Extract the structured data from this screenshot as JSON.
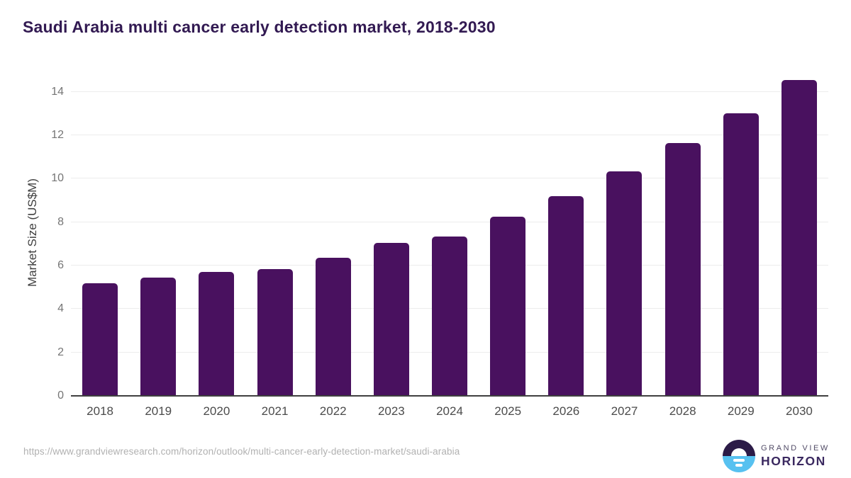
{
  "header": {
    "title": "Saudi Arabia multi cancer early detection market, 2018-2030"
  },
  "chart_data": {
    "type": "bar",
    "title": "Saudi Arabia multi cancer early detection market, 2018-2030",
    "categories": [
      "2018",
      "2019",
      "2020",
      "2021",
      "2022",
      "2023",
      "2024",
      "2025",
      "2026",
      "2027",
      "2028",
      "2029",
      "2030"
    ],
    "values": [
      5.2,
      5.45,
      5.7,
      5.85,
      6.35,
      7.05,
      7.35,
      8.25,
      9.2,
      10.35,
      11.65,
      13.0,
      14.55
    ],
    "series_name": "Market Size",
    "xlabel": "",
    "ylabel": "Market Size (US$M)",
    "ylim": [
      0,
      15
    ],
    "yticks": [
      0,
      2,
      4,
      6,
      8,
      10,
      12,
      14
    ],
    "grid": true,
    "legend": false,
    "bar_color": "#49115f"
  },
  "footer": {
    "source_url": "https://www.grandviewresearch.com/horizon/outlook/multi-cancer-early-detection-market/saudi-arabia",
    "logo": {
      "brand_line1": "GRAND VIEW",
      "brand_line2": "HORIZON"
    }
  },
  "colors": {
    "bar": "#49115f",
    "title_text": "#321a52",
    "gridline": "#ececec",
    "axis_line": "#3f3f3f",
    "y_tick_text": "#757575",
    "x_tick_text": "#4b4b4b",
    "url_text": "#b1b1b1",
    "logo_dark": "#2c1b47",
    "logo_blue": "#57c1f0",
    "logo_brand_text": "#3b2960"
  }
}
